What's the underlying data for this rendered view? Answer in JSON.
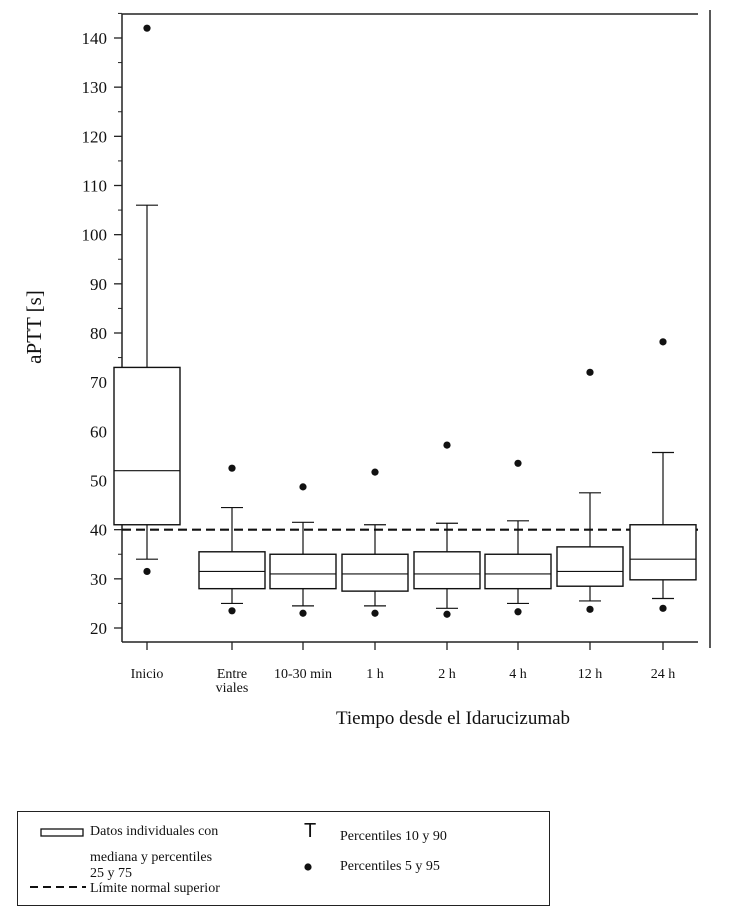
{
  "chart_data": {
    "type": "box",
    "ylabel": "aPTT [s]",
    "xlabel": "Tiempo desde el Idarucizumab",
    "ylim": [
      17,
      147
    ],
    "yticks": [
      20,
      30,
      40,
      50,
      60,
      70,
      80,
      90,
      100,
      110,
      120,
      130,
      140
    ],
    "reference_line": {
      "value": 40,
      "style": "dashed",
      "label": "Límite normal superior"
    },
    "categories": [
      [
        "Inicio"
      ],
      [
        "Entre",
        "viales"
      ],
      [
        "10-30 min"
      ],
      [
        "1 h"
      ],
      [
        "2 h"
      ],
      [
        "4 h"
      ],
      [
        "12 h"
      ],
      [
        "24 h"
      ]
    ],
    "boxes": [
      {
        "p5": 31.5,
        "p10": 34,
        "p25": 41,
        "median": 52,
        "p75": 73,
        "p90": 106,
        "p95": 142
      },
      {
        "p5": 23.5,
        "p10": 25,
        "p25": 28,
        "median": 31.5,
        "p75": 35.5,
        "p90": 44.5,
        "p95": 52.5
      },
      {
        "p5": 23,
        "p10": 24.5,
        "p25": 28,
        "median": 31,
        "p75": 35,
        "p90": 41.5,
        "p95": 48.7
      },
      {
        "p5": 23,
        "p10": 24.5,
        "p25": 27.5,
        "median": 31,
        "p75": 35,
        "p90": 41,
        "p95": 51.7
      },
      {
        "p5": 22.8,
        "p10": 24,
        "p25": 28,
        "median": 31,
        "p75": 35.5,
        "p90": 41.3,
        "p95": 57.2
      },
      {
        "p5": 23.3,
        "p10": 25,
        "p25": 28,
        "median": 31,
        "p75": 35,
        "p90": 41.8,
        "p95": 53.5
      },
      {
        "p5": 23.8,
        "p10": 25.5,
        "p25": 28.5,
        "median": 31.5,
        "p75": 36.5,
        "p90": 47.5,
        "p95": 72
      },
      {
        "p5": 24,
        "p10": 26,
        "p25": 29.8,
        "median": 34,
        "p75": 41,
        "p90": 55.7,
        "p95": 78.2
      }
    ]
  },
  "legend": {
    "box_label_line1": "Datos individuales con",
    "box_label_line2": "mediana y percentiles",
    "box_label_line3": "25 y 75",
    "dash_label": "Límite normal superior",
    "t_symbol": "T",
    "t_label": "Percentiles 10 y 90",
    "dot_label": "Percentiles 5 y 95"
  }
}
